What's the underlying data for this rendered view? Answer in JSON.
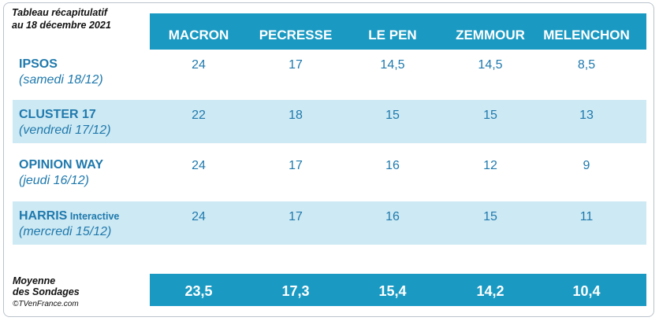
{
  "caption": {
    "line1": "Tableau récapitulatif",
    "line2": "au 18 décembre 2021"
  },
  "chart_data": {
    "type": "table",
    "columns": [
      "MACRON",
      "PECRESSE",
      "LE PEN",
      "ZEMMOUR",
      "MELENCHON"
    ],
    "rows": [
      {
        "institute": "IPSOS",
        "institute_suffix": "",
        "date": "(samedi 18/12)",
        "values": [
          "24",
          "17",
          "14,5",
          "14,5",
          "8,5"
        ],
        "shaded": false
      },
      {
        "institute": "CLUSTER 17",
        "institute_suffix": "",
        "date": "(vendredi 17/12)",
        "values": [
          "22",
          "18",
          "15",
          "15",
          "13"
        ],
        "shaded": true
      },
      {
        "institute": "OPINION WAY",
        "institute_suffix": "",
        "date": "(jeudi 16/12)",
        "values": [
          "24",
          "17",
          "16",
          "12",
          "9"
        ],
        "shaded": false
      },
      {
        "institute": "HARRIS",
        "institute_suffix": " Interactive",
        "date": "(mercredi 15/12)",
        "values": [
          "24",
          "17",
          "16",
          "15",
          "11"
        ],
        "shaded": true
      }
    ],
    "average": {
      "label_line1": "Moyenne",
      "label_line2": "des Sondages",
      "values": [
        "23,5",
        "17,3",
        "15,4",
        "14,2",
        "10,4"
      ]
    }
  },
  "credit": "©TVenFrance.com",
  "colors": {
    "header_band": "#1a9ac3",
    "shaded_row": "#cde9f3",
    "text_blue": "#1f79ad"
  }
}
